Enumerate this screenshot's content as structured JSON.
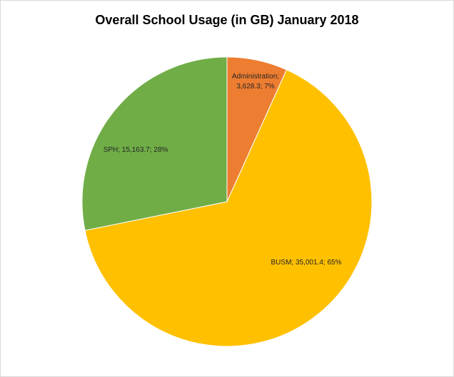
{
  "chart_data": {
    "type": "pie",
    "title": "Overall School Usage (in GB) January 2018",
    "slices": [
      {
        "name": "Administration",
        "value": 3628.3,
        "percent": 7,
        "color": "#ED7D31",
        "label_lines": [
          "Administration;",
          "3,628.3; 7%"
        ]
      },
      {
        "name": "BUSM",
        "value": 35001.4,
        "percent": 65,
        "color": "#FFC000",
        "label_lines": [
          "BUSM; 35,001.4; 65%"
        ]
      },
      {
        "name": "SPH",
        "value": 15163.7,
        "percent": 28,
        "color": "#70AD47",
        "label_lines": [
          "SPH; 15,163.7; 28%"
        ]
      }
    ]
  }
}
